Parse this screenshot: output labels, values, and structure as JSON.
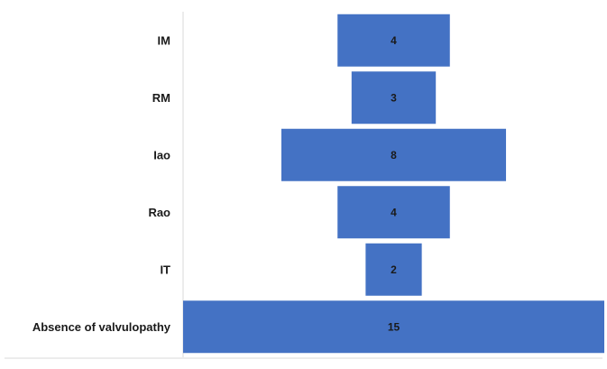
{
  "chart_data": {
    "type": "bar",
    "orientation": "horizontal",
    "layout": "centered-funnel",
    "categories": [
      "IM",
      "RM",
      "Iao",
      "Rao",
      "IT",
      "Absence of valvulopathy"
    ],
    "values": [
      4,
      3,
      8,
      4,
      2,
      15
    ],
    "title": "",
    "xlabel": "",
    "ylabel": "",
    "xlim": [
      0,
      15
    ],
    "bar_color": "#4472C4",
    "grid": false,
    "legend": "none",
    "data_labels": true
  }
}
